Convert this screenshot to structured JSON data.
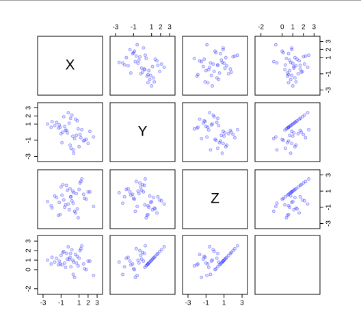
{
  "chart_data": {
    "type": "scatter_matrix",
    "point_color": "#0000ff",
    "variables": [
      {
        "name": "X",
        "lim": [
          -3.3,
          3.3
        ],
        "ticks": [
          -3,
          -1,
          1,
          2,
          3
        ],
        "values": [
          0.3,
          -1.2,
          0.8,
          1.5,
          -0.4,
          0.1,
          -2.1,
          1.1,
          -0.7,
          0.5,
          2.2,
          -1.5,
          0.0,
          0.9,
          -0.2,
          -1.0,
          1.8,
          -0.6,
          0.4,
          -2.5,
          1.3,
          -0.9,
          0.6,
          -0.3,
          2.6,
          -1.7,
          0.2,
          1.0,
          -1.3,
          0.7,
          -0.1,
          1.6,
          -0.8,
          0.35,
          -2.0,
          1.2,
          -0.5,
          0.05,
          2.0,
          -1.1
        ]
      },
      {
        "name": "Y",
        "lim": [
          -3.3,
          3.3
        ],
        "ticks": [
          -3,
          -1,
          1,
          2,
          3
        ],
        "values": [
          -0.5,
          0.9,
          1.4,
          -1.1,
          0.2,
          -2.0,
          0.6,
          -0.3,
          1.9,
          -0.8,
          0.1,
          1.2,
          -1.6,
          0.4,
          2.4,
          -0.2,
          -0.9,
          0.7,
          -2.6,
          1.0,
          0.3,
          -1.3,
          1.6,
          -0.1,
          -0.6,
          0.8,
          2.1,
          -1.8,
          0.5,
          -0.4,
          1.1,
          -1.0,
          0.0,
          -2.2,
          1.3,
          -0.7,
          0.25,
          1.7,
          -1.4,
          0.6
        ]
      },
      {
        "name": "Z",
        "lim": [
          -3.3,
          3.3
        ],
        "ticks": [
          -3,
          -1,
          1,
          3
        ],
        "values": [
          1.0,
          -0.4,
          -1.2,
          0.6,
          1.7,
          0.3,
          -0.8,
          2.0,
          -0.1,
          -1.5,
          0.9,
          0.2,
          1.3,
          -2.3,
          -0.6,
          1.5,
          0.0,
          -1.0,
          0.8,
          -0.3,
          2.5,
          0.5,
          -1.7,
          1.1,
          -0.9,
          0.4,
          -0.2,
          1.2,
          -2.0,
          0.7,
          -1.3,
          0.1,
          1.8,
          -0.5,
          -1.1,
          2.2,
          -0.7,
          0.3,
          0.9,
          -1.9
        ]
      },
      {
        "name": null,
        "lim": [
          -2.3,
          3.3
        ],
        "ticks": [
          -2,
          0,
          1,
          2,
          3
        ],
        "values": [
          1.0,
          0.9,
          1.4,
          0.6,
          1.7,
          0.3,
          0.6,
          2.0,
          1.9,
          -0.8,
          0.9,
          1.2,
          1.3,
          0.4,
          2.4,
          1.5,
          0.0,
          0.7,
          0.8,
          1.0,
          2.5,
          0.5,
          1.6,
          1.1,
          -0.6,
          0.8,
          2.1,
          1.2,
          0.5,
          0.7,
          1.1,
          0.1,
          1.8,
          -0.5,
          1.3,
          2.2,
          0.25,
          1.7,
          0.9,
          0.6
        ]
      }
    ]
  }
}
